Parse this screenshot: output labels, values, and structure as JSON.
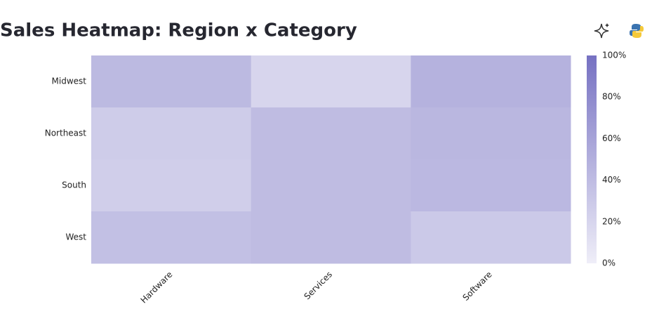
{
  "chart_data": {
    "type": "heatmap",
    "title": "Sales Heatmap: Region x Category",
    "x": [
      "Hardware",
      "Services",
      "Software"
    ],
    "y": [
      "Midwest",
      "Northeast",
      "South",
      "West"
    ],
    "values": [
      [
        42,
        20,
        48
      ],
      [
        27,
        40,
        44
      ],
      [
        26,
        40,
        43
      ],
      [
        37,
        40,
        30
      ]
    ],
    "colorscale": [
      "#efeef8",
      "#7671c2"
    ],
    "zlim": [
      0,
      100
    ],
    "zticks": [
      {
        "value": 0,
        "label": "0%"
      },
      {
        "value": 20,
        "label": "20%"
      },
      {
        "value": 40,
        "label": "40%"
      },
      {
        "value": 60,
        "label": "60%"
      },
      {
        "value": 80,
        "label": "80%"
      },
      {
        "value": 100,
        "label": "100%"
      }
    ]
  }
}
